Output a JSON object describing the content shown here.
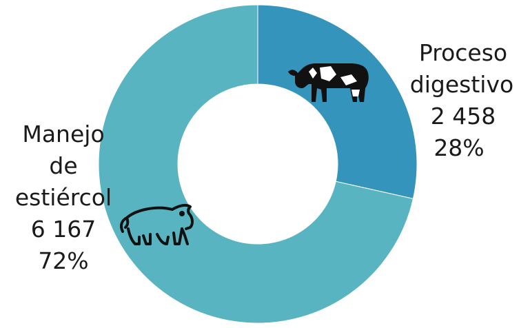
{
  "chart_data": {
    "type": "pie",
    "variant": "donut",
    "title": "",
    "slices": [
      {
        "name": "Proceso digestivo",
        "label_lines": [
          "Proceso",
          "digestivo"
        ],
        "value": 2458,
        "value_label": "2 458",
        "percent_label": "28%",
        "color": "#3594bb",
        "icon": "cow-icon"
      },
      {
        "name": "Manejo de estiércol",
        "label_lines": [
          "Manejo",
          "de",
          "estiércol"
        ],
        "value": 6167,
        "value_label": "6 167",
        "percent_label": "72%",
        "color": "#58b4c0",
        "icon": "pig-icon"
      }
    ],
    "legend": "none"
  }
}
